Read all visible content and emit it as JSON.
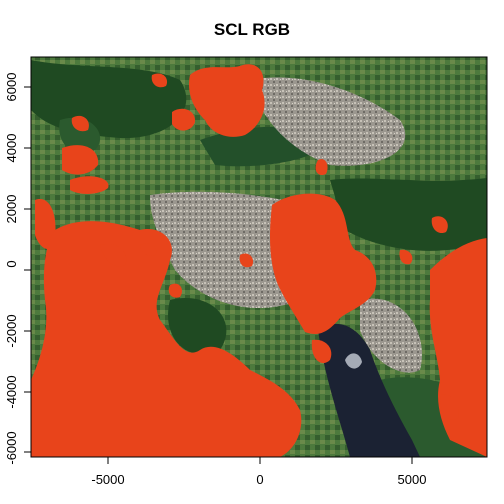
{
  "title": "SCL RGB",
  "x_ticks": [
    "-5000",
    "0",
    "5000"
  ],
  "y_ticks": [
    "6000",
    "4000",
    "2000",
    "0",
    "-2000",
    "-4000",
    "-6000"
  ],
  "colors": {
    "cloud_mask": "#e8441b",
    "vegetation_dark": "#1f4a22",
    "vegetation": "#3f6b35",
    "urban": "#a7a29a",
    "water": "#1b2233",
    "bright_cloud": "#dfe6ee"
  }
}
